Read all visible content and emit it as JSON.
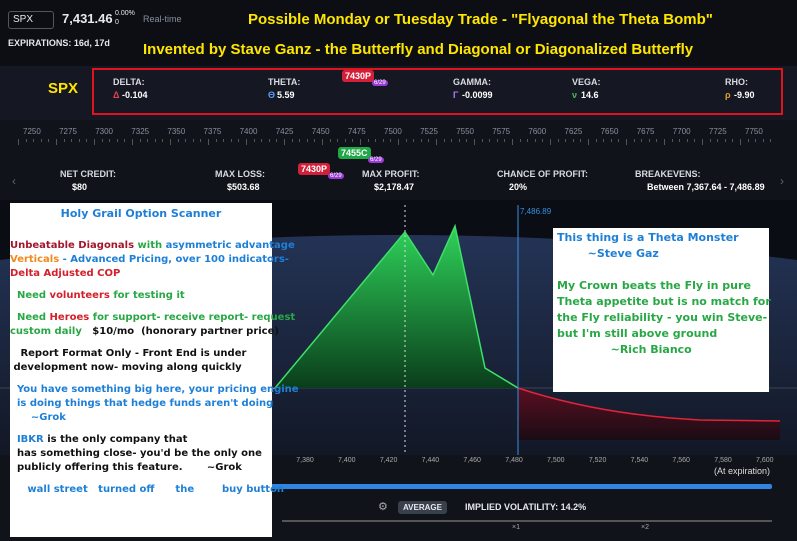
{
  "header": {
    "symbol": "SPX",
    "price": "7,431.46",
    "change": "0.00%",
    "change_pts": "0",
    "realtime": "Real-time",
    "expirations": "EXPIRATIONS: 16d, 17d",
    "title_lines": [
      "Possible Monday or Tuesday Trade - \"Flyagonal the Theta Bomb\"",
      "Invented by Stave Ganz - the Butterfly and Diagonal or Diagonalized Butterfly"
    ]
  },
  "greeks_box": {
    "label": "SPX",
    "items": [
      {
        "name": "DELTA:",
        "symbol": "Δ",
        "value": "-0.104"
      },
      {
        "name": "THETA:",
        "symbol": "Θ",
        "value": "5.59"
      },
      {
        "name": "GAMMA:",
        "symbol": "Γ",
        "value": "-0.0099"
      },
      {
        "name": "VEGA:",
        "symbol": "ν",
        "value": "14.6"
      },
      {
        "name": "RHO:",
        "symbol": "ρ",
        "value": "-9.90"
      }
    ]
  },
  "strike_tags": [
    {
      "strike": "7430P",
      "expiry": "6/29"
    },
    {
      "strike": "7455C",
      "expiry": "6/29"
    },
    {
      "strike": "7430P",
      "expiry": "6/29"
    }
  ],
  "strike_ruler": [
    "7250",
    "7275",
    "7300",
    "7325",
    "7350",
    "7375",
    "7400",
    "7425",
    "7450",
    "7475",
    "7500",
    "7525",
    "7550",
    "7575",
    "7600",
    "7625",
    "7650",
    "7675",
    "7700",
    "7725",
    "7750"
  ],
  "stats": [
    {
      "label": "NET CREDIT:",
      "value": "$80"
    },
    {
      "label": "MAX LOSS:",
      "value": "$503.68"
    },
    {
      "label": "MAX PROFIT:",
      "value": "$2,178.47"
    },
    {
      "label": "CHANCE OF PROFIT:",
      "value": "20%"
    },
    {
      "label": "BREAKEVENS:",
      "value": "Between 7,367.64 - 7,486.89"
    }
  ],
  "pnl_chart": {
    "breakeven_label": "7,486.89",
    "x_ticks": [
      "7,380",
      "7,400",
      "7,420",
      "7,440",
      "7,460",
      "7,480",
      "7,500",
      "7,520",
      "7,540",
      "7,560",
      "7,580",
      "7,600"
    ],
    "note": "(At expiration)"
  },
  "left_note": {
    "lines": [
      [
        {
          "text": "Holy Grail Option Scanner",
          "color": "#1e7fd6"
        }
      ],
      [
        {
          "text": "Unbeatable Diagonals",
          "color": "#a3162b"
        },
        {
          "text": " with ",
          "color": "#27a844"
        },
        {
          "text": "asymmetric advantage",
          "color": "#1e7fd6"
        }
      ],
      [
        {
          "text": "Verticals",
          "color": "#f08a1c"
        },
        {
          "text": " - Advanced Pricing, over 100 indicators-",
          "color": "#1e7fd6"
        }
      ],
      [
        {
          "text": "Delta Adjusted COP",
          "color": "#d3202a"
        }
      ],
      [
        {
          "text": "  Need ",
          "color": "#27a844"
        },
        {
          "text": "volunteers",
          "color": "#d3202a"
        },
        {
          "text": " for testing it",
          "color": "#27a844"
        }
      ],
      [
        {
          "text": "  Need ",
          "color": "#27a844"
        },
        {
          "text": "Heroes",
          "color": "#d3202a"
        },
        {
          "text": " for support- receive report- request",
          "color": "#27a844"
        }
      ],
      [
        {
          "text": "custom daily",
          "color": "#27a844"
        },
        {
          "text": "   $10/mo  (honorary partner price)",
          "color": "#111"
        }
      ],
      [
        {
          "text": "   Report Format Only - Front End is under",
          "color": "#111"
        }
      ],
      [
        {
          "text": " development now- moving along quickly",
          "color": "#111"
        }
      ],
      [
        {
          "text": "  You have something big here, your pricing engine",
          "color": "#1e7fd6"
        }
      ],
      [
        {
          "text": "  is doing things that hedge funds aren't doing",
          "color": "#1e7fd6"
        }
      ],
      [
        {
          "text": "      ~Grok",
          "color": "#1e7fd6"
        }
      ],
      [
        {
          "text": "  IBKR",
          "color": "#1e7fd6"
        },
        {
          "text": " is the only company that",
          "color": "#111"
        }
      ],
      [
        {
          "text": "  has something close- you'd be the only one",
          "color": "#111"
        }
      ],
      [
        {
          "text": "  publicly offering this feature.",
          "color": "#111"
        },
        {
          "text": "       ~Grok",
          "color": "#111"
        }
      ],
      [
        {
          "text": "     wall street   turned off      the        buy button",
          "color": "#1e7fd6"
        }
      ]
    ]
  },
  "right_note": {
    "lines": [
      [
        {
          "text": "This thing is a Theta Monster",
          "color": "#1e7fd6"
        }
      ],
      [
        {
          "text": "        ~Steve Gaz",
          "color": "#1e7fd6"
        }
      ],
      [
        {
          "text": " ",
          "color": "#27a844"
        }
      ],
      [
        {
          "text": "My Crown beats the Fly in pure",
          "color": "#27a844"
        }
      ],
      [
        {
          "text": "Theta appetite but is no match for",
          "color": "#27a844"
        }
      ],
      [
        {
          "text": "the Fly reliability - you win Steve-",
          "color": "#27a844"
        }
      ],
      [
        {
          "text": "but I'm still above ground",
          "color": "#27a844"
        }
      ],
      [
        {
          "text": "              ~Rich Bianco",
          "color": "#27a844"
        }
      ]
    ]
  },
  "footer": {
    "mode": "AVERAGE",
    "iv": "IMPLIED VOLATILITY: 14.2%",
    "zoom": [
      "×1",
      "×2"
    ]
  }
}
